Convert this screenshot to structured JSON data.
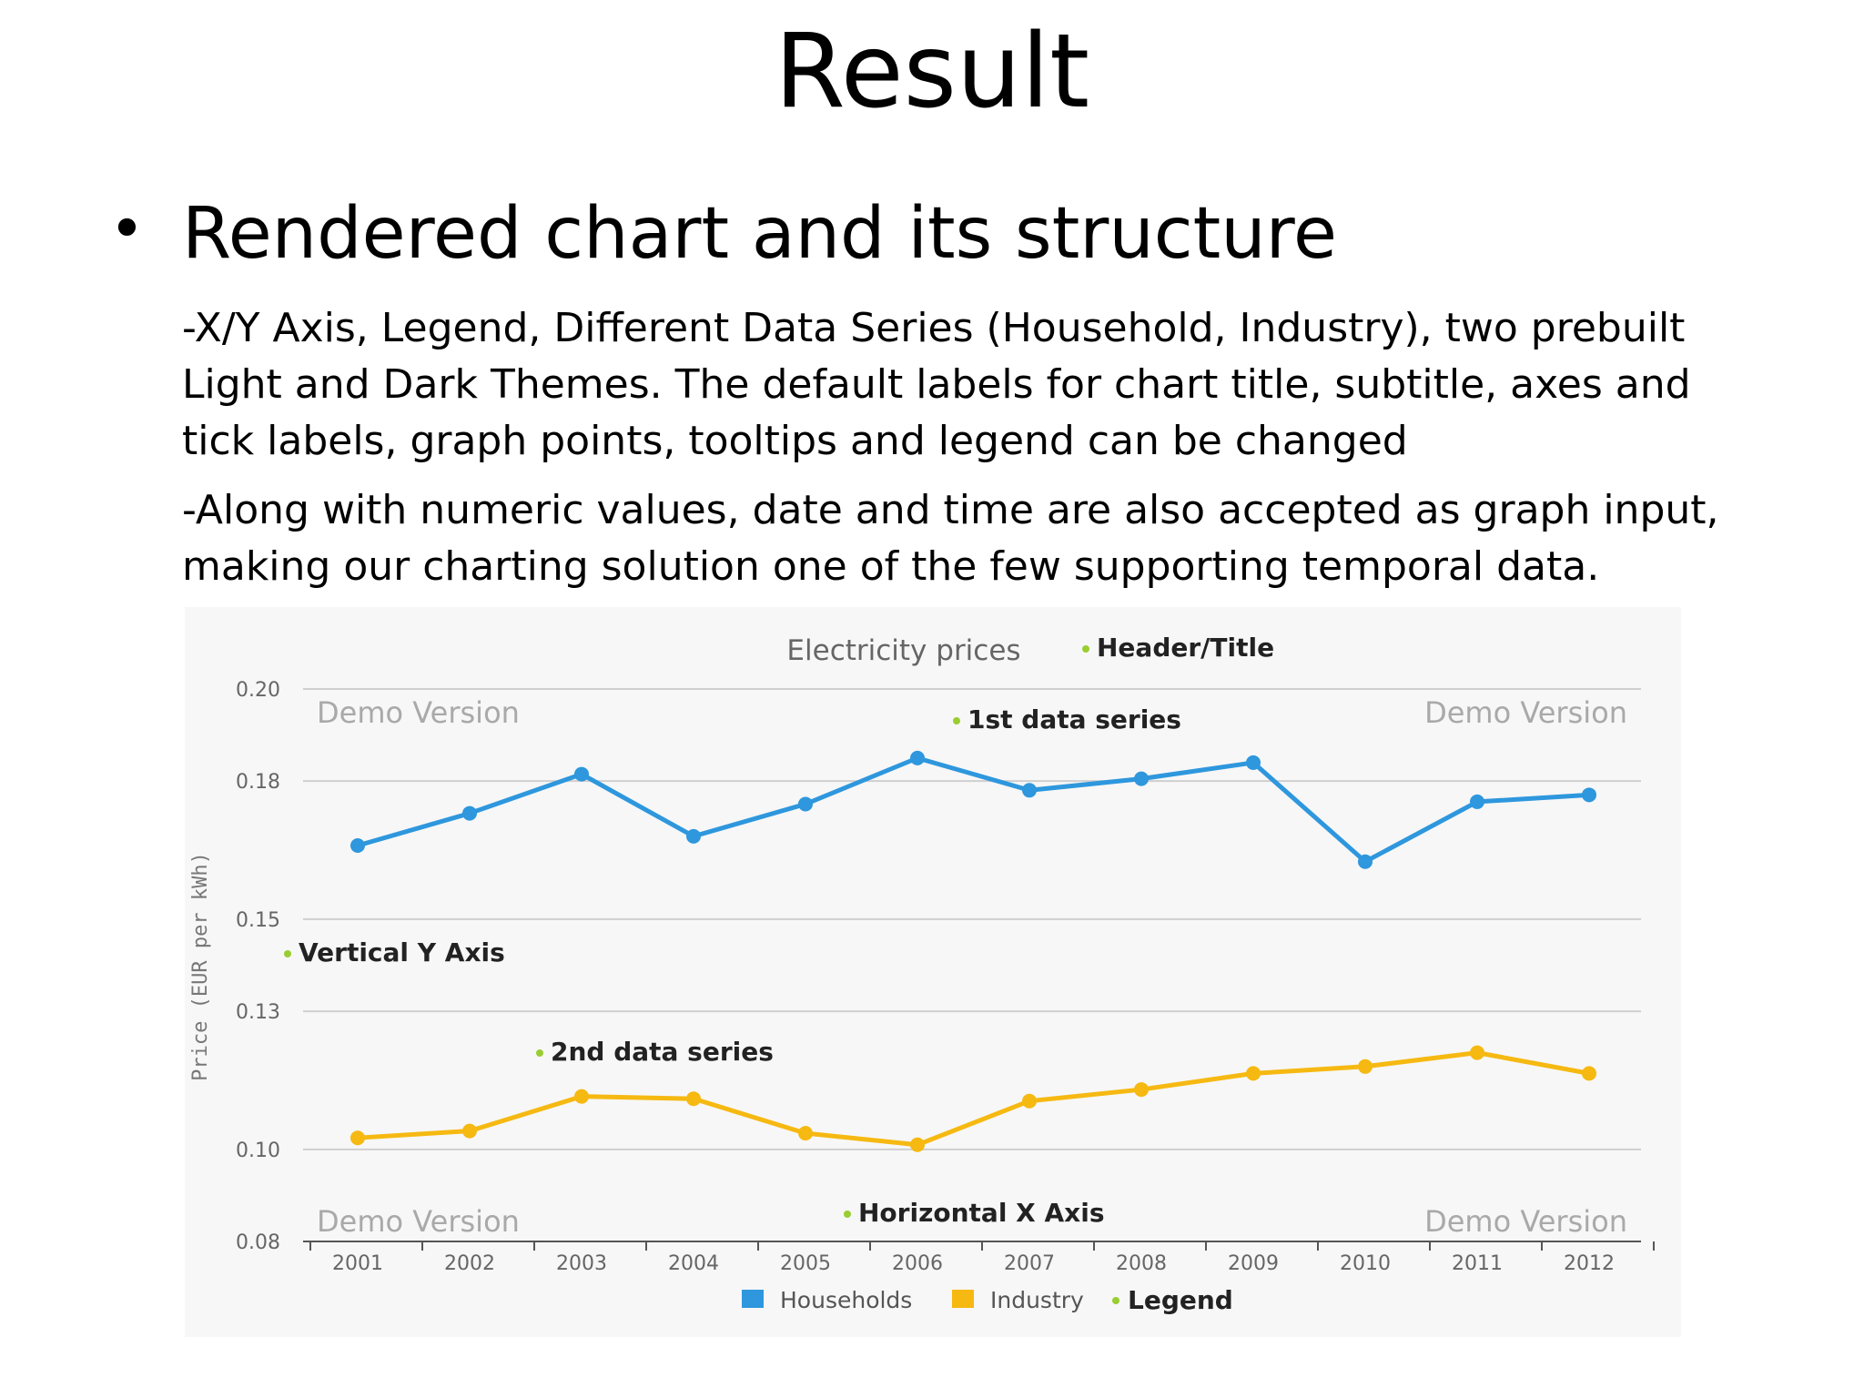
{
  "slide": {
    "title": "Result",
    "bullet": "Rendered chart and its structure",
    "paragraph1": "-X/Y Axis, Legend, Different Data Series (Household, Industry), two prebuilt Light and Dark Themes. The default labels for chart title, subtitle, axes and tick labels, graph points, tooltips and legend can be changed",
    "paragraph2": "-Along with numeric values, date and time are also accepted as graph input, making our charting solution one of the few supporting temporal data."
  },
  "chart_data": {
    "type": "line",
    "title": "Electricity prices",
    "ylabel": "Price (EUR per kWh)",
    "xlabel": "",
    "categories": [
      "2001",
      "2002",
      "2003",
      "2004",
      "2005",
      "2006",
      "2007",
      "2008",
      "2009",
      "2010",
      "2011",
      "2012"
    ],
    "ytick_labels": [
      "0.20",
      "0.18",
      "0.15",
      "0.13",
      "0.10",
      "0.08"
    ],
    "ytick_values": [
      0.2,
      0.18,
      0.15,
      0.13,
      0.1,
      0.08
    ],
    "ylim": [
      0.08,
      0.2
    ],
    "grid": true,
    "legend_position": "bottom-center",
    "series": [
      {
        "name": "Households",
        "color": "#2e97dd",
        "values": [
          0.166,
          0.173,
          0.1815,
          0.168,
          0.175,
          0.185,
          0.178,
          0.1805,
          0.184,
          0.1625,
          0.1755,
          0.177
        ]
      },
      {
        "name": "Industry",
        "color": "#f6b912",
        "values": [
          0.1025,
          0.104,
          0.1115,
          0.111,
          0.1035,
          0.101,
          0.1105,
          0.113,
          0.1165,
          0.118,
          0.121,
          0.1165
        ]
      }
    ],
    "annotations": {
      "title": "Header/Title",
      "series1": "1st data series",
      "series2": "2nd data series",
      "yaxis": "Vertical Y Axis",
      "xaxis": "Horizontal X Axis",
      "legend": "Legend",
      "marker_color": "#9acd32"
    },
    "watermark": "Demo Version"
  }
}
